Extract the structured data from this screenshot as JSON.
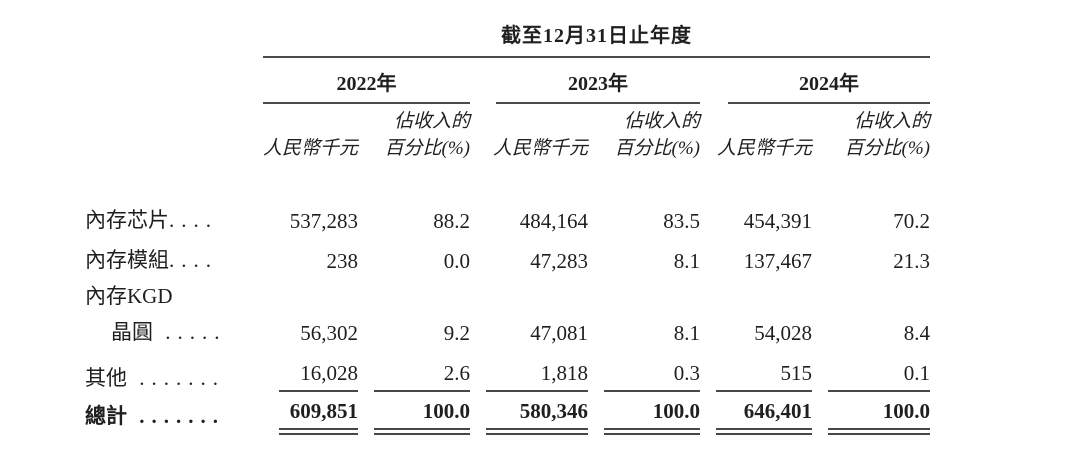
{
  "table": {
    "title": "截至12月31日止年度",
    "years": [
      {
        "label": "2022年"
      },
      {
        "label": "2023年"
      },
      {
        "label": "2024年"
      }
    ],
    "col_headers": {
      "value": "人民幣千元",
      "pct_line1": "佔收入的",
      "pct_line2": "百分比(%)"
    },
    "rows": [
      {
        "label": "內存芯片",
        "leader": "....",
        "values": [
          "537,283",
          "88.2",
          "484,164",
          "83.5",
          "454,391",
          "70.2"
        ]
      },
      {
        "label": "內存模組",
        "leader": "....",
        "values": [
          "238",
          "0.0",
          "47,283",
          "8.1",
          "137,467",
          "21.3"
        ]
      },
      {
        "label": "內存KGD",
        "leader": "",
        "values": [
          "",
          "",
          "",
          "",
          "",
          ""
        ]
      },
      {
        "label": "晶圓",
        "leader": " .....",
        "values": [
          "56,302",
          "9.2",
          "47,081",
          "8.1",
          "54,028",
          "8.4"
        ]
      },
      {
        "label": "其他",
        "leader": " .......",
        "values": [
          "16,028",
          "2.6",
          "1,818",
          "0.3",
          "515",
          "0.1"
        ]
      },
      {
        "label": "總計",
        "leader": " .......",
        "values": [
          "609,851",
          "100.0",
          "580,346",
          "100.0",
          "646,401",
          "100.0"
        ]
      }
    ]
  },
  "colors": {
    "text": "#1f1f1f",
    "rule": "#4a4a4a",
    "background": "#ffffff"
  }
}
